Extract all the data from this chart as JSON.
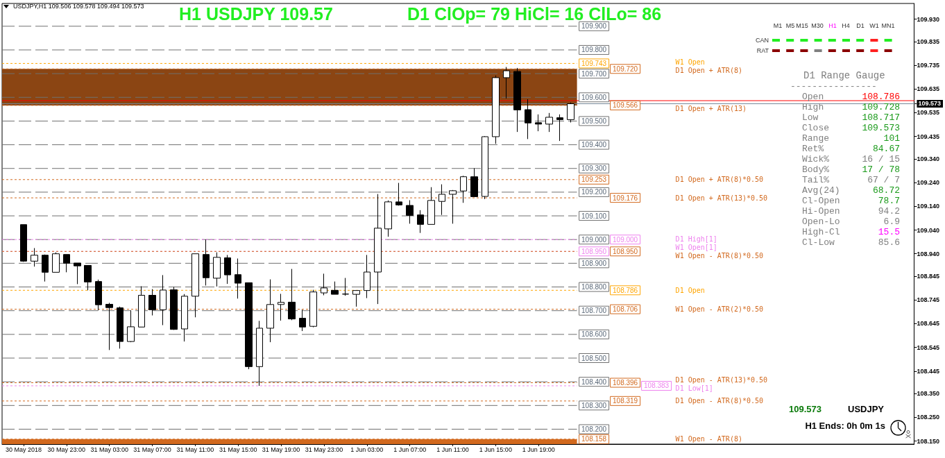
{
  "chart_data": {
    "type": "candlestick",
    "title": "H1 USDJPY 109.57",
    "subtitle": "D1 ClOp= 79 HiCl= 16 ClLo= 86",
    "categories": [
      null,
      null,
      "30 May 2018",
      null,
      null,
      null,
      "30 May 23:00",
      null,
      null,
      null,
      "31 May 03:00",
      null,
      null,
      null,
      "31 May 07:00",
      null,
      null,
      null,
      "31 May 11:00",
      null,
      null,
      null,
      "31 May 15:00",
      null,
      null,
      null,
      "31 May 19:00",
      null,
      null,
      null,
      "31 May 23:00",
      null,
      null,
      null,
      "1 Jun 03:00",
      null,
      null,
      null,
      "1 Jun 07:00",
      null,
      null,
      null,
      "1 Jun 11:00",
      null,
      null,
      null,
      "1 Jun 15:00",
      null,
      null,
      null,
      "1 Jun 19:00",
      null,
      null,
      null,
      null,
      null,
      null,
      null,
      null,
      null,
      null,
      null,
      null,
      null,
      null,
      null,
      null,
      null,
      null,
      null,
      null,
      null,
      null,
      null,
      null,
      null,
      null,
      null,
      null,
      null,
      null,
      null,
      null,
      null,
      null,
      null
    ],
    "ohlc": [
      null,
      null,
      [
        109.063,
        109.063,
        108.906,
        108.909
      ],
      [
        108.909,
        108.964,
        108.886,
        108.934
      ],
      [
        108.934,
        108.937,
        108.823,
        108.862
      ],
      [
        108.862,
        108.946,
        108.862,
        108.94
      ],
      [
        108.937,
        108.937,
        108.862,
        108.9
      ],
      [
        108.901,
        108.901,
        108.812,
        108.889
      ],
      [
        108.891,
        108.891,
        108.786,
        108.821
      ],
      [
        108.823,
        108.831,
        108.701,
        108.725
      ],
      [
        108.727,
        108.733,
        108.534,
        108.713
      ],
      [
        108.712,
        108.717,
        108.54,
        108.57
      ],
      [
        108.57,
        108.701,
        108.567,
        108.632
      ],
      [
        108.631,
        108.803,
        108.631,
        108.765
      ],
      [
        108.765,
        108.791,
        108.68,
        108.704
      ],
      [
        108.704,
        108.85,
        108.639,
        108.787
      ],
      [
        108.788,
        108.8,
        108.619,
        108.621
      ],
      [
        108.623,
        108.77,
        108.57,
        108.761
      ],
      [
        108.761,
        108.94,
        108.672,
        108.94
      ],
      [
        108.937,
        109.0,
        108.806,
        108.839
      ],
      [
        108.837,
        108.946,
        108.802,
        108.925
      ],
      [
        108.923,
        108.935,
        108.813,
        108.851
      ],
      [
        108.852,
        108.92,
        108.751,
        108.816
      ],
      [
        108.818,
        108.818,
        108.453,
        108.464
      ],
      [
        108.464,
        108.657,
        108.383,
        108.626
      ],
      [
        108.626,
        108.832,
        108.567,
        108.726
      ],
      [
        108.726,
        108.771,
        108.658,
        108.735
      ],
      [
        108.736,
        108.876,
        108.66,
        108.665
      ],
      [
        108.668,
        108.704,
        108.614,
        108.631
      ],
      [
        108.634,
        108.788,
        108.63,
        108.779
      ],
      [
        108.775,
        108.856,
        108.765,
        108.796
      ],
      [
        108.786,
        108.823,
        108.769,
        108.769
      ],
      [
        108.77,
        108.838,
        108.763,
        108.77
      ],
      [
        108.769,
        108.785,
        108.717,
        108.785
      ],
      [
        108.785,
        108.935,
        108.753,
        108.863
      ],
      [
        108.863,
        109.192,
        108.728,
        109.048
      ],
      [
        109.045,
        109.165,
        109.012,
        109.159
      ],
      [
        109.159,
        109.239,
        109.143,
        109.146
      ],
      [
        109.144,
        109.166,
        109.067,
        109.102
      ],
      [
        109.104,
        109.124,
        109.028,
        109.064
      ],
      [
        109.064,
        109.221,
        109.064,
        109.165
      ],
      [
        109.161,
        109.233,
        109.104,
        109.191
      ],
      [
        109.191,
        109.209,
        109.067,
        109.206
      ],
      [
        109.205,
        109.269,
        109.155,
        109.265
      ],
      [
        109.265,
        109.301,
        109.18,
        109.181
      ],
      [
        109.182,
        109.436,
        109.171,
        109.434
      ],
      [
        109.434,
        109.692,
        109.404,
        109.683
      ],
      [
        109.683,
        109.728,
        109.595,
        109.712
      ],
      [
        109.709,
        109.724,
        109.454,
        109.547
      ],
      [
        109.548,
        109.592,
        109.424,
        109.492
      ],
      [
        109.493,
        109.528,
        109.457,
        109.487
      ],
      [
        109.487,
        109.534,
        109.454,
        109.516
      ],
      [
        109.514,
        109.528,
        109.416,
        109.506
      ],
      [
        109.506,
        109.578,
        109.494,
        109.573
      ],
      null,
      null,
      null,
      null,
      null,
      null,
      null,
      null,
      null,
      null,
      null,
      null,
      null,
      null,
      null,
      null,
      null,
      null,
      null,
      null,
      null,
      null,
      null,
      null,
      null,
      null,
      null,
      null,
      null,
      null,
      null,
      null
    ],
    "ylim": [
      108.137,
      109.996
    ],
    "yticks": [
      {
        "value": 109.93,
        "label": "109.930"
      },
      109.835,
      109.735,
      109.635,
      109.573,
      109.535,
      109.435,
      {
        "value": 109.34,
        "label": "109.340"
      },
      {
        "value": 109.24,
        "label": "109.240"
      },
      {
        "value": 109.14,
        "label": "109.140"
      },
      {
        "value": 109.04,
        "label": "109.040"
      },
      {
        "value": 108.94,
        "label": "108.940"
      },
      108.845,
      108.745,
      108.645,
      108.545,
      108.445,
      {
        "value": 108.35,
        "label": "108.350"
      },
      {
        "value": 108.25,
        "label": "108.250"
      },
      {
        "value": 108.15,
        "label": "108.150"
      }
    ],
    "bands": [
      {
        "axis": "y",
        "from": 109.566,
        "to": 109.72,
        "color": "#8b4513"
      },
      {
        "axis": "y",
        "from": 108.137,
        "to": 108.158,
        "color": "#d2691e"
      }
    ],
    "ref_lines": [
      {
        "axis": "y",
        "value": 109.9,
        "label": null,
        "color": "#707070",
        "line_style": "dashed"
      },
      {
        "axis": "y",
        "value": 109.8,
        "label": null,
        "color": "#707070",
        "line_style": "dashed"
      },
      {
        "axis": "y",
        "value": 109.7,
        "label": null,
        "color": "#707070",
        "line_style": "dashed"
      },
      {
        "axis": "y",
        "value": 109.6,
        "label": null,
        "color": "#707070",
        "line_style": "dashed"
      },
      {
        "axis": "y",
        "value": 109.5,
        "label": null,
        "color": "#707070",
        "line_style": "dashed"
      },
      {
        "axis": "y",
        "value": 109.4,
        "label": null,
        "color": "#707070",
        "line_style": "dashed"
      },
      {
        "axis": "y",
        "value": 109.3,
        "label": null,
        "color": "#707070",
        "line_style": "dashed"
      },
      {
        "axis": "y",
        "value": 109.2,
        "label": null,
        "color": "#707070",
        "line_style": "dashed"
      },
      {
        "axis": "y",
        "value": 109.1,
        "label": null,
        "color": "#707070",
        "line_style": "dashed"
      },
      {
        "axis": "y",
        "value": 109.0,
        "label": null,
        "color": "#707070",
        "line_style": "dashed"
      },
      {
        "axis": "y",
        "value": 108.9,
        "label": null,
        "color": "#707070",
        "line_style": "dashed"
      },
      {
        "axis": "y",
        "value": 108.8,
        "label": null,
        "color": "#707070",
        "line_style": "dashed"
      },
      {
        "axis": "y",
        "value": 108.7,
        "label": null,
        "color": "#707070",
        "line_style": "dashed"
      },
      {
        "axis": "y",
        "value": 108.6,
        "label": null,
        "color": "#707070",
        "line_style": "dashed"
      },
      {
        "axis": "y",
        "value": 108.5,
        "label": null,
        "color": "#707070",
        "line_style": "dashed"
      },
      {
        "axis": "y",
        "value": 108.4,
        "label": null,
        "color": "#707070",
        "line_style": "dashed"
      },
      {
        "axis": "y",
        "value": 108.3,
        "label": null,
        "color": "#707070",
        "line_style": "dashed"
      },
      {
        "axis": "y",
        "value": 108.2,
        "label": null,
        "color": "#707070",
        "line_style": "dashed"
      },
      {
        "axis": "y",
        "value": 109.743,
        "label": "W1 Open",
        "color": "#ffa500",
        "line_style": "dotted"
      },
      {
        "axis": "y",
        "value": 109.72,
        "label": "D1 Open + ATR(8)",
        "color": "#d2691e",
        "line_style": "dotted"
      },
      {
        "axis": "y",
        "value": 109.566,
        "label": "D1 Open + ATR(13)",
        "color": "#d2691e",
        "line_style": "dotted"
      },
      {
        "axis": "y",
        "value": 109.253,
        "label": "D1 Open + ATR(8)*0.50",
        "color": "#d2691e",
        "line_style": "dotted"
      },
      {
        "axis": "y",
        "value": 109.176,
        "label": "D1 Open + ATR(13)*0.50",
        "color": "#d2691e",
        "line_style": "dotted"
      },
      {
        "axis": "y",
        "value": 109.0,
        "label": "D1 High[1]",
        "color": "#ee82ee",
        "line_style": "dotted"
      },
      {
        "axis": "y",
        "value": 108.95,
        "label": "W1 Open[1]",
        "color": "#ee82ee",
        "line_style": "dotted"
      },
      {
        "axis": "y",
        "value": 108.95,
        "label": "W1 Open - ATR(8)*0.50",
        "color": "#d2691e",
        "line_style": "dotted"
      },
      {
        "axis": "y",
        "value": 108.786,
        "label": "D1 Open",
        "color": "#ffa500",
        "line_style": "dotted"
      },
      {
        "axis": "y",
        "value": 108.706,
        "label": "W1 Open - ATR(2)*0.50",
        "color": "#d2691e",
        "line_style": "dotted"
      },
      {
        "axis": "y",
        "value": 108.396,
        "label": "D1 Open - ATR(13)*0.50",
        "color": "#d2691e",
        "line_style": "dotted"
      },
      {
        "axis": "y",
        "value": 108.383,
        "label": "D1 Low[1]",
        "color": "#ee82ee",
        "line_style": "dotted"
      },
      {
        "axis": "y",
        "value": 108.319,
        "label": "D1 Open - ATR(8)*0.50",
        "color": "#d2691e",
        "line_style": "dotted"
      },
      {
        "axis": "y",
        "value": 108.158,
        "label": "W1 Open - ATR(8)",
        "color": "#d2691e",
        "line_style": "dotted"
      },
      {
        "axis": "y",
        "value": 109.586,
        "label": null,
        "color": "#ff0000",
        "line_style": "solid"
      },
      {
        "axis": "y",
        "value": 109.573,
        "label": null,
        "color": "#778899",
        "line_style": "solid"
      }
    ],
    "annotations": [
      "USDJPY,H1 109.506 109.578 109.494 109.573",
      "M1",
      "M5",
      "M15",
      "M30",
      "H1",
      "H4",
      "D1",
      "W1",
      "MN1",
      "CAN",
      "RAT",
      "D1 Range Gauge",
      "----------------",
      "Open",
      "108.786",
      "High",
      "109.728",
      "Low",
      "108.717",
      "Close",
      "109.573",
      "Range",
      "101",
      "Ret%",
      "84.67",
      "Wick%",
      "16 / 15",
      "Body%",
      "17 / 78",
      "Tail%",
      "67 / 7",
      "Avg(24)",
      "68.72",
      "Cl-Open",
      "78.7",
      "Hi-Open",
      "94.2",
      "Open-Lo",
      "6.9",
      "High-Cl",
      "15.5",
      "Cl-Low",
      "85.6",
      "109.573",
      "USDJPY",
      "H1 Ends: 0h 0m 1s",
      {
        "text": "109.900",
        "y": 109.9
      },
      {
        "text": "109.800",
        "y": 109.8
      },
      {
        "text": "109.700",
        "y": 109.7
      },
      {
        "text": "109.600",
        "y": 109.6
      },
      {
        "text": "109.500",
        "y": 109.5
      },
      {
        "text": "109.400",
        "y": 109.4
      },
      {
        "text": "109.300",
        "y": 109.3
      },
      {
        "text": "109.200",
        "y": 109.2
      },
      {
        "text": "109.100",
        "y": 109.1
      },
      {
        "text": "109.000",
        "y": 109.0
      },
      {
        "text": "108.900",
        "y": 108.9
      },
      {
        "text": "108.800",
        "y": 108.8
      },
      {
        "text": "108.700",
        "y": 108.7
      },
      {
        "text": "108.600",
        "y": 108.6
      },
      {
        "text": "108.500",
        "y": 108.5
      },
      {
        "text": "108.400",
        "y": 108.4
      },
      {
        "text": "108.300",
        "y": 108.3
      },
      {
        "text": "108.200",
        "y": 108.2
      },
      {
        "text": "109.743",
        "y": 109.743
      },
      {
        "text": "109.720",
        "y": 109.72
      },
      {
        "text": "109.566",
        "y": 109.566
      },
      {
        "text": "109.253",
        "y": 109.253
      },
      {
        "text": "109.176",
        "y": 109.176
      },
      {
        "text": "109.000",
        "y": 109.0
      },
      {
        "text": "108.950",
        "y": 108.95
      },
      {
        "text": "108.950",
        "y": 108.95
      },
      {
        "text": "108.786",
        "y": 108.786
      },
      {
        "text": "108.706",
        "y": 108.706
      },
      {
        "text": "108.396",
        "y": 108.396
      },
      {
        "text": "108.383",
        "y": 108.383
      },
      {
        "text": "108.319",
        "y": 108.319
      },
      {
        "text": "108.158",
        "y": 108.158
      }
    ]
  }
}
